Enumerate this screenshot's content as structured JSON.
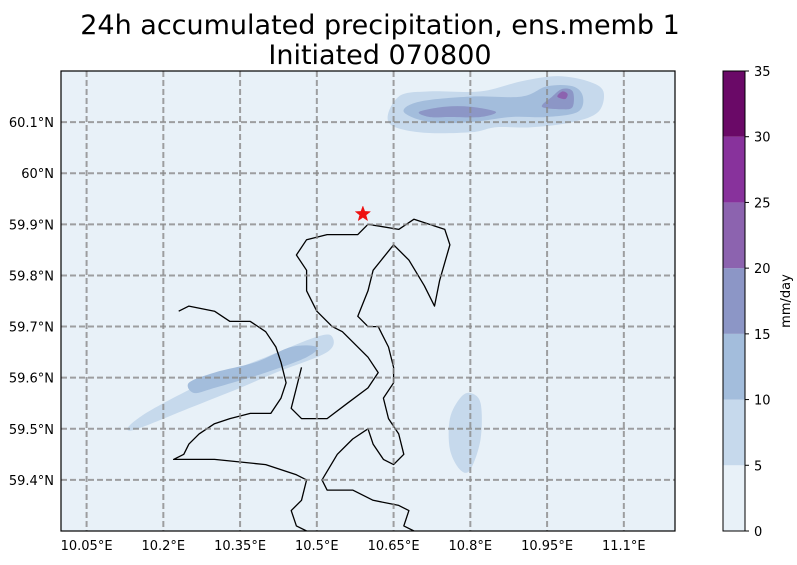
{
  "chart_data": {
    "type": "heatmap",
    "title_line1": "24h accumulated precipitation, ens.memb 1",
    "title_line2": "Initiated 070800",
    "colorbar_label": "mm/day",
    "xlim": [
      10.0,
      11.2
    ],
    "ylim": [
      59.3,
      60.2
    ],
    "x_ticks": [
      {
        "value": 10.05,
        "label": "10.05°E"
      },
      {
        "value": 10.2,
        "label": "10.2°E"
      },
      {
        "value": 10.35,
        "label": "10.35°E"
      },
      {
        "value": 10.5,
        "label": "10.5°E"
      },
      {
        "value": 10.65,
        "label": "10.65°E"
      },
      {
        "value": 10.8,
        "label": "10.8°E"
      },
      {
        "value": 10.95,
        "label": "10.95°E"
      },
      {
        "value": 11.1,
        "label": "11.1°E"
      }
    ],
    "y_ticks": [
      {
        "value": 59.4,
        "label": "59.4°N"
      },
      {
        "value": 59.5,
        "label": "59.5°N"
      },
      {
        "value": 59.6,
        "label": "59.6°N"
      },
      {
        "value": 59.7,
        "label": "59.7°N"
      },
      {
        "value": 59.8,
        "label": "59.8°N"
      },
      {
        "value": 59.9,
        "label": "59.9°N"
      },
      {
        "value": 60.0,
        "label": "60°N"
      },
      {
        "value": 60.1,
        "label": "60.1°N"
      }
    ],
    "grid": true,
    "levels": [
      0,
      5,
      10,
      15,
      20,
      25,
      30,
      35
    ],
    "level_labels": [
      "0",
      "5",
      "10",
      "15",
      "20",
      "25",
      "30",
      "35"
    ],
    "level_colors": [
      "#e8f1f8",
      "#c6d9ec",
      "#a3bddc",
      "#8c96c6",
      "#8c63af",
      "#88329c",
      "#6a0967"
    ],
    "precip_regions": [
      {
        "level": 5,
        "points": [
          [
            10.13,
            59.5
          ],
          [
            10.15,
            59.52
          ],
          [
            10.2,
            59.55
          ],
          [
            10.3,
            59.6
          ],
          [
            10.4,
            59.64
          ],
          [
            10.5,
            59.68
          ],
          [
            10.53,
            59.68
          ],
          [
            10.52,
            59.65
          ],
          [
            10.42,
            59.61
          ],
          [
            10.35,
            59.58
          ],
          [
            10.25,
            59.54
          ],
          [
            10.15,
            59.5
          ]
        ]
      },
      {
        "level": 10,
        "points": [
          [
            10.25,
            59.59
          ],
          [
            10.3,
            59.61
          ],
          [
            10.38,
            59.63
          ],
          [
            10.45,
            59.66
          ],
          [
            10.5,
            59.66
          ],
          [
            10.48,
            59.64
          ],
          [
            10.4,
            59.61
          ],
          [
            10.3,
            59.58
          ],
          [
            10.26,
            59.57
          ]
        ]
      },
      {
        "level": 5,
        "points": [
          [
            10.76,
            59.52
          ],
          [
            10.78,
            59.56
          ],
          [
            10.8,
            59.57
          ],
          [
            10.82,
            59.55
          ],
          [
            10.82,
            59.48
          ],
          [
            10.8,
            59.42
          ],
          [
            10.78,
            59.42
          ],
          [
            10.76,
            59.46
          ]
        ]
      },
      {
        "level": 5,
        "points": [
          [
            10.64,
            60.1
          ],
          [
            10.66,
            60.15
          ],
          [
            10.72,
            60.16
          ],
          [
            10.82,
            60.16
          ],
          [
            10.9,
            60.18
          ],
          [
            10.97,
            60.19
          ],
          [
            11.03,
            60.18
          ],
          [
            11.06,
            60.16
          ],
          [
            11.05,
            60.12
          ],
          [
            11.0,
            60.1
          ],
          [
            10.92,
            60.09
          ],
          [
            10.85,
            60.09
          ],
          [
            10.8,
            60.08
          ],
          [
            10.7,
            60.08
          ]
        ]
      },
      {
        "level": 10,
        "points": [
          [
            10.67,
            60.12
          ],
          [
            10.7,
            60.14
          ],
          [
            10.8,
            60.15
          ],
          [
            10.9,
            60.15
          ],
          [
            10.95,
            60.17
          ],
          [
            11.0,
            60.17
          ],
          [
            11.02,
            60.15
          ],
          [
            11.01,
            60.12
          ],
          [
            10.95,
            60.11
          ],
          [
            10.88,
            60.11
          ],
          [
            10.8,
            60.1
          ],
          [
            10.72,
            60.1
          ]
        ]
      },
      {
        "level": 15,
        "points": [
          [
            10.7,
            60.12
          ],
          [
            10.75,
            60.13
          ],
          [
            10.8,
            60.13
          ],
          [
            10.85,
            60.12
          ],
          [
            10.82,
            60.11
          ],
          [
            10.76,
            60.11
          ],
          [
            10.72,
            60.11
          ]
        ]
      },
      {
        "level": 15,
        "points": [
          [
            10.94,
            60.13
          ],
          [
            10.96,
            60.15
          ],
          [
            10.98,
            60.165
          ],
          [
            11.0,
            60.16
          ],
          [
            11.0,
            60.13
          ],
          [
            10.98,
            60.125
          ]
        ]
      },
      {
        "level": 20,
        "points": [
          [
            10.97,
            60.15
          ],
          [
            10.98,
            60.16
          ],
          [
            10.99,
            60.155
          ],
          [
            10.985,
            60.145
          ]
        ]
      }
    ],
    "coastline": [
      [
        10.23,
        59.73
      ],
      [
        10.25,
        59.74
      ],
      [
        10.3,
        59.73
      ],
      [
        10.33,
        59.71
      ],
      [
        10.37,
        59.71
      ],
      [
        10.4,
        59.69
      ],
      [
        10.42,
        59.66
      ],
      [
        10.43,
        59.63
      ],
      [
        10.44,
        59.59
      ],
      [
        10.43,
        59.56
      ],
      [
        10.41,
        59.53
      ],
      [
        10.37,
        59.53
      ],
      [
        10.33,
        59.52
      ],
      [
        10.3,
        59.51
      ],
      [
        10.27,
        59.49
      ],
      [
        10.25,
        59.47
      ],
      [
        10.24,
        59.45
      ],
      [
        10.22,
        59.44
      ],
      [
        10.3,
        59.44
      ],
      [
        10.4,
        59.43
      ],
      [
        10.46,
        59.41
      ],
      [
        10.48,
        59.4
      ],
      [
        10.47,
        59.36
      ],
      [
        10.45,
        59.34
      ],
      [
        10.46,
        59.31
      ],
      [
        10.48,
        59.3
      ]
    ],
    "coastline2": [
      [
        10.47,
        59.62
      ],
      [
        10.46,
        59.58
      ],
      [
        10.45,
        59.54
      ],
      [
        10.47,
        59.52
      ],
      [
        10.5,
        59.52
      ],
      [
        10.52,
        59.52
      ],
      [
        10.56,
        59.55
      ],
      [
        10.6,
        59.58
      ],
      [
        10.62,
        59.61
      ],
      [
        10.6,
        59.64
      ],
      [
        10.57,
        59.67
      ],
      [
        10.55,
        59.69
      ],
      [
        10.53,
        59.7
      ],
      [
        10.5,
        59.73
      ],
      [
        10.48,
        59.77
      ],
      [
        10.48,
        59.81
      ],
      [
        10.46,
        59.84
      ],
      [
        10.48,
        59.87
      ],
      [
        10.52,
        59.88
      ],
      [
        10.58,
        59.88
      ],
      [
        10.6,
        59.9
      ],
      [
        10.66,
        59.89
      ],
      [
        10.69,
        59.91
      ],
      [
        10.75,
        59.89
      ],
      [
        10.76,
        59.86
      ],
      [
        10.74,
        59.79
      ],
      [
        10.73,
        59.74
      ],
      [
        10.71,
        59.78
      ],
      [
        10.68,
        59.83
      ],
      [
        10.65,
        59.86
      ],
      [
        10.61,
        59.81
      ],
      [
        10.6,
        59.77
      ],
      [
        10.58,
        59.72
      ],
      [
        10.6,
        59.7
      ],
      [
        10.62,
        59.7
      ],
      [
        10.64,
        59.66
      ],
      [
        10.65,
        59.62
      ],
      [
        10.65,
        59.59
      ],
      [
        10.63,
        59.56
      ],
      [
        10.64,
        59.52
      ],
      [
        10.66,
        59.49
      ],
      [
        10.67,
        59.45
      ],
      [
        10.65,
        59.43
      ],
      [
        10.63,
        59.44
      ],
      [
        10.61,
        59.47
      ],
      [
        10.6,
        59.5
      ],
      [
        10.57,
        59.48
      ],
      [
        10.54,
        59.45
      ],
      [
        10.51,
        59.4
      ],
      [
        10.52,
        59.38
      ],
      [
        10.57,
        59.38
      ],
      [
        10.61,
        59.36
      ],
      [
        10.66,
        59.35
      ],
      [
        10.68,
        59.34
      ],
      [
        10.67,
        59.31
      ],
      [
        10.69,
        59.3
      ]
    ],
    "star_marker": {
      "lon": 10.59,
      "lat": 59.92,
      "color": "#ee1111"
    }
  }
}
